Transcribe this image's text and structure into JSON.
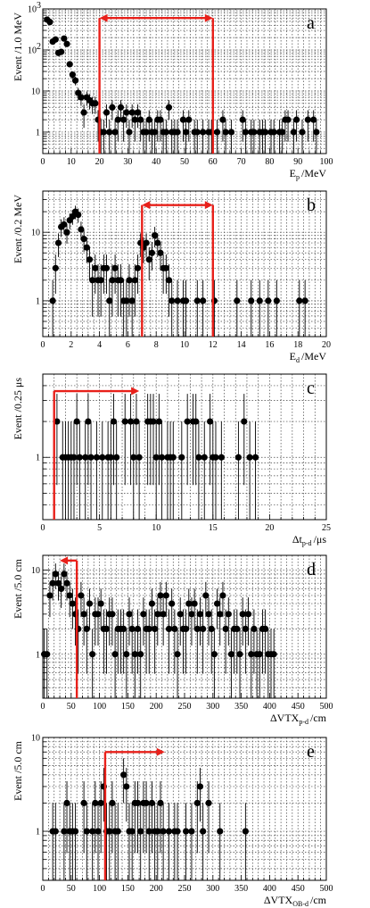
{
  "chart_data": [
    {
      "type": "scatter",
      "id": "a",
      "panel_label": "a",
      "xlabel_main": "E",
      "xlabel_sub": "p",
      "xlabel_unit": "/MeV",
      "ylabel": "Event /1.0 MeV",
      "xlim": [
        0,
        100
      ],
      "ylim": [
        0.3,
        1000
      ],
      "ylog": true,
      "grid": true,
      "x_ticks": [
        0,
        10,
        20,
        30,
        40,
        50,
        60,
        70,
        80,
        90,
        100
      ],
      "y_ticks": [
        {
          "v": 1,
          "label": "1"
        },
        {
          "v": 10,
          "label": "10"
        },
        {
          "v": 100,
          "label": "10",
          "exp": "2"
        },
        {
          "v": 1000,
          "label": "10",
          "exp": "3"
        }
      ],
      "cuts": [
        {
          "x1": 20,
          "x2": 60,
          "arrow_y": 600,
          "dir": "both"
        }
      ],
      "points": [
        [
          1.5,
          550
        ],
        [
          2.5,
          480
        ],
        [
          3.5,
          160
        ],
        [
          4.5,
          180
        ],
        [
          5.5,
          85
        ],
        [
          6.5,
          90
        ],
        [
          7.5,
          190
        ],
        [
          8.5,
          140
        ],
        [
          9.5,
          45
        ],
        [
          10.5,
          25
        ],
        [
          11.5,
          18
        ],
        [
          12.5,
          9
        ],
        [
          13.5,
          7
        ],
        [
          14.5,
          3
        ],
        [
          15.5,
          7
        ],
        [
          16.5,
          6
        ],
        [
          17.5,
          5
        ],
        [
          18.5,
          5
        ],
        [
          19.5,
          2
        ],
        [
          20.5,
          1
        ],
        [
          21.5,
          1
        ],
        [
          22.5,
          3
        ],
        [
          23.5,
          1
        ],
        [
          24.5,
          4
        ],
        [
          25.5,
          1
        ],
        [
          26.5,
          2
        ],
        [
          27.5,
          4
        ],
        [
          28.5,
          2
        ],
        [
          29.5,
          3
        ],
        [
          30.5,
          1
        ],
        [
          31.5,
          3
        ],
        [
          32.5,
          2
        ],
        [
          33.5,
          3
        ],
        [
          34.5,
          2
        ],
        [
          35.5,
          1
        ],
        [
          36.5,
          1
        ],
        [
          37.5,
          2
        ],
        [
          38.5,
          1
        ],
        [
          39.5,
          1
        ],
        [
          40.5,
          2
        ],
        [
          41.5,
          2
        ],
        [
          42.5,
          1
        ],
        [
          43.5,
          1
        ],
        [
          44.5,
          4
        ],
        [
          45.5,
          1
        ],
        [
          46.5,
          1
        ],
        [
          47.5,
          1
        ],
        [
          49.5,
          2
        ],
        [
          50.5,
          1
        ],
        [
          51.5,
          2
        ],
        [
          53.5,
          1
        ],
        [
          54.5,
          1
        ],
        [
          56.5,
          1
        ],
        [
          58.5,
          1
        ],
        [
          59.5,
          1
        ],
        [
          61.5,
          1
        ],
        [
          63.5,
          2
        ],
        [
          64.5,
          1
        ],
        [
          66.5,
          1
        ],
        [
          70.5,
          2
        ],
        [
          71.5,
          1
        ],
        [
          73.5,
          1
        ],
        [
          74.5,
          1
        ],
        [
          76.5,
          1
        ],
        [
          77.5,
          1
        ],
        [
          78.5,
          1
        ],
        [
          80.5,
          1
        ],
        [
          81.5,
          1
        ],
        [
          83.5,
          1
        ],
        [
          84.5,
          1
        ],
        [
          85.5,
          2
        ],
        [
          86.5,
          2
        ],
        [
          88.5,
          1
        ],
        [
          89.5,
          2
        ],
        [
          91.5,
          1
        ],
        [
          93.5,
          2
        ],
        [
          95.5,
          2
        ],
        [
          96.5,
          1
        ]
      ]
    },
    {
      "type": "scatter",
      "id": "b",
      "panel_label": "b",
      "xlabel_main": "E",
      "xlabel_sub": "d",
      "xlabel_unit": "/MeV",
      "ylabel": "Event /0.2 MeV",
      "xlim": [
        0,
        20
      ],
      "ylim": [
        0.3,
        40
      ],
      "ylog": true,
      "grid": true,
      "x_ticks": [
        0,
        2,
        4,
        6,
        8,
        10,
        12,
        14,
        16,
        18,
        20
      ],
      "y_ticks": [
        {
          "v": 1,
          "label": "1"
        },
        {
          "v": 10,
          "label": "10"
        }
      ],
      "cuts": [
        {
          "x1": 7,
          "x2": 12,
          "arrow_y": 25,
          "dir": "both"
        }
      ],
      "points": [
        [
          0.7,
          1
        ],
        [
          0.9,
          3
        ],
        [
          1.1,
          7
        ],
        [
          1.3,
          12
        ],
        [
          1.5,
          13
        ],
        [
          1.7,
          10
        ],
        [
          1.9,
          15
        ],
        [
          2.1,
          17
        ],
        [
          2.3,
          20
        ],
        [
          2.5,
          18
        ],
        [
          2.7,
          11
        ],
        [
          2.9,
          8
        ],
        [
          3.1,
          6
        ],
        [
          3.3,
          4
        ],
        [
          3.5,
          2
        ],
        [
          3.7,
          3
        ],
        [
          3.9,
          2
        ],
        [
          4.1,
          2
        ],
        [
          4.3,
          3
        ],
        [
          4.5,
          3
        ],
        [
          4.7,
          1
        ],
        [
          4.9,
          2
        ],
        [
          5.1,
          3
        ],
        [
          5.3,
          2
        ],
        [
          5.5,
          2
        ],
        [
          5.7,
          1
        ],
        [
          5.9,
          1
        ],
        [
          6.1,
          2
        ],
        [
          6.3,
          1
        ],
        [
          6.5,
          2
        ],
        [
          6.7,
          3
        ],
        [
          6.9,
          7
        ],
        [
          7.1,
          6
        ],
        [
          7.3,
          7
        ],
        [
          7.5,
          4
        ],
        [
          7.7,
          5
        ],
        [
          7.9,
          9
        ],
        [
          8.1,
          7
        ],
        [
          8.3,
          5
        ],
        [
          8.5,
          3
        ],
        [
          8.7,
          3
        ],
        [
          8.9,
          2
        ],
        [
          9.1,
          1
        ],
        [
          9.5,
          1
        ],
        [
          9.9,
          1
        ],
        [
          10.1,
          1
        ],
        [
          10.9,
          1
        ],
        [
          11.3,
          1
        ],
        [
          12.1,
          1
        ],
        [
          13.7,
          1
        ],
        [
          14.7,
          1
        ],
        [
          15.3,
          1
        ],
        [
          15.9,
          1
        ],
        [
          16.5,
          1
        ],
        [
          18.1,
          1
        ],
        [
          18.5,
          1
        ]
      ]
    },
    {
      "type": "scatter",
      "id": "c",
      "panel_label": "c",
      "xlabel_main": "Δt",
      "xlabel_sub": "p-d",
      "xlabel_unit": "/μs",
      "ylabel": "Event /0.25 μs",
      "xlim": [
        0,
        25
      ],
      "ylim": [
        0.3,
        5
      ],
      "ylog": true,
      "grid": true,
      "x_ticks": [
        0,
        5,
        10,
        15,
        20,
        25
      ],
      "y_ticks": [
        {
          "v": 1,
          "label": "1"
        }
      ],
      "cuts": [
        {
          "x1": 1,
          "arrow_y": 3.6,
          "arrow_to": 8.5,
          "dir": "right"
        }
      ],
      "points": [
        [
          1.25,
          2
        ],
        [
          1.75,
          1
        ],
        [
          2.0,
          1
        ],
        [
          2.25,
          1
        ],
        [
          2.5,
          1
        ],
        [
          2.75,
          1
        ],
        [
          3.0,
          2
        ],
        [
          3.25,
          1
        ],
        [
          3.75,
          1
        ],
        [
          4.0,
          2
        ],
        [
          4.25,
          1
        ],
        [
          4.75,
          1
        ],
        [
          5.25,
          1
        ],
        [
          5.75,
          1
        ],
        [
          6.0,
          1
        ],
        [
          6.25,
          2
        ],
        [
          6.5,
          1
        ],
        [
          7.25,
          2
        ],
        [
          7.75,
          2
        ],
        [
          8.0,
          1
        ],
        [
          8.25,
          2
        ],
        [
          8.5,
          1
        ],
        [
          9.25,
          2
        ],
        [
          9.5,
          2
        ],
        [
          9.75,
          2
        ],
        [
          10.0,
          1
        ],
        [
          10.25,
          2
        ],
        [
          10.5,
          1
        ],
        [
          11.0,
          1
        ],
        [
          11.25,
          1
        ],
        [
          11.5,
          1
        ],
        [
          12.25,
          1
        ],
        [
          12.75,
          2
        ],
        [
          13.25,
          2
        ],
        [
          13.5,
          2
        ],
        [
          13.75,
          1
        ],
        [
          14.25,
          1
        ],
        [
          14.75,
          2
        ],
        [
          15.0,
          1
        ],
        [
          15.25,
          1
        ],
        [
          15.75,
          1
        ],
        [
          17.25,
          1
        ],
        [
          17.75,
          2
        ],
        [
          18.25,
          1
        ],
        [
          18.75,
          1
        ]
      ]
    },
    {
      "type": "scatter",
      "id": "d",
      "panel_label": "d",
      "xlabel_main": "ΔVTX",
      "xlabel_sub": "p-d",
      "xlabel_unit": "/cm",
      "ylabel": "Event /5.0 cm",
      "xlim": [
        0,
        500
      ],
      "ylim": [
        0.3,
        15
      ],
      "ylog": true,
      "grid": true,
      "x_ticks": [
        0,
        50,
        100,
        150,
        200,
        250,
        300,
        350,
        400,
        450,
        500
      ],
      "y_ticks": [
        {
          "v": 1,
          "label": "1"
        },
        {
          "v": 10,
          "label": "10"
        }
      ],
      "cuts": [
        {
          "x1": 60,
          "arrow_y": 13,
          "arrow_to": 30,
          "dir": "left"
        }
      ],
      "points": [
        [
          2.5,
          1
        ],
        [
          7.5,
          1
        ],
        [
          12.5,
          5
        ],
        [
          17.5,
          7
        ],
        [
          22.5,
          9
        ],
        [
          27.5,
          7
        ],
        [
          32.5,
          6
        ],
        [
          37.5,
          9
        ],
        [
          42.5,
          7
        ],
        [
          47.5,
          5
        ],
        [
          52.5,
          4
        ],
        [
          57.5,
          3
        ],
        [
          62.5,
          2
        ],
        [
          67.5,
          5
        ],
        [
          72.5,
          3
        ],
        [
          77.5,
          2
        ],
        [
          82.5,
          4
        ],
        [
          87.5,
          1
        ],
        [
          92.5,
          3
        ],
        [
          97.5,
          3
        ],
        [
          102.5,
          4
        ],
        [
          107.5,
          2
        ],
        [
          112.5,
          2
        ],
        [
          117.5,
          3
        ],
        [
          122.5,
          3
        ],
        [
          127.5,
          1
        ],
        [
          132.5,
          2
        ],
        [
          137.5,
          2
        ],
        [
          142.5,
          2
        ],
        [
          147.5,
          1
        ],
        [
          152.5,
          3
        ],
        [
          157.5,
          2
        ],
        [
          162.5,
          1
        ],
        [
          167.5,
          2
        ],
        [
          172.5,
          1
        ],
        [
          177.5,
          3
        ],
        [
          182.5,
          2
        ],
        [
          187.5,
          2
        ],
        [
          192.5,
          4
        ],
        [
          197.5,
          2
        ],
        [
          202.5,
          3
        ],
        [
          207.5,
          5
        ],
        [
          212.5,
          3
        ],
        [
          217.5,
          5
        ],
        [
          222.5,
          2
        ],
        [
          227.5,
          4
        ],
        [
          232.5,
          2
        ],
        [
          237.5,
          1
        ],
        [
          242.5,
          3
        ],
        [
          247.5,
          2
        ],
        [
          252.5,
          2
        ],
        [
          257.5,
          4
        ],
        [
          262.5,
          3
        ],
        [
          267.5,
          4
        ],
        [
          272.5,
          2
        ],
        [
          277.5,
          3
        ],
        [
          282.5,
          2
        ],
        [
          287.5,
          5
        ],
        [
          292.5,
          3
        ],
        [
          297.5,
          2
        ],
        [
          302.5,
          1
        ],
        [
          307.5,
          4
        ],
        [
          312.5,
          3
        ],
        [
          317.5,
          5
        ],
        [
          322.5,
          2
        ],
        [
          327.5,
          3
        ],
        [
          332.5,
          1
        ],
        [
          337.5,
          2
        ],
        [
          342.5,
          2
        ],
        [
          347.5,
          1
        ],
        [
          352.5,
          3
        ],
        [
          357.5,
          2
        ],
        [
          362.5,
          3
        ],
        [
          367.5,
          1
        ],
        [
          372.5,
          2
        ],
        [
          377.5,
          1
        ],
        [
          382.5,
          1
        ],
        [
          387.5,
          2
        ],
        [
          392.5,
          2
        ],
        [
          397.5,
          1
        ],
        [
          402.5,
          1
        ],
        [
          407.5,
          1
        ]
      ]
    },
    {
      "type": "scatter",
      "id": "e",
      "panel_label": "e",
      "xlabel_main": "ΔVTX",
      "xlabel_sub": "OB-d",
      "xlabel_unit": "/cm",
      "ylabel": "Event /5.0 cm",
      "xlim": [
        0,
        500
      ],
      "ylim": [
        0.3,
        10
      ],
      "ylog": true,
      "grid": true,
      "x_ticks": [
        0,
        50,
        100,
        150,
        200,
        250,
        300,
        350,
        400,
        450,
        500
      ],
      "y_ticks": [
        {
          "v": 1,
          "label": "1"
        },
        {
          "v": 10,
          "label": "10"
        }
      ],
      "cuts": [
        {
          "x1": 110,
          "arrow_y": 7,
          "arrow_to": 215,
          "dir": "right"
        }
      ],
      "points": [
        [
          17.5,
          1
        ],
        [
          22.5,
          1
        ],
        [
          37.5,
          1
        ],
        [
          42.5,
          2
        ],
        [
          47.5,
          1
        ],
        [
          52.5,
          1
        ],
        [
          57.5,
          1
        ],
        [
          72.5,
          2
        ],
        [
          77.5,
          1
        ],
        [
          87.5,
          1
        ],
        [
          92.5,
          2
        ],
        [
          97.5,
          1
        ],
        [
          102.5,
          2
        ],
        [
          107.5,
          3
        ],
        [
          112.5,
          1
        ],
        [
          117.5,
          1
        ],
        [
          122.5,
          2
        ],
        [
          127.5,
          1
        ],
        [
          132.5,
          1
        ],
        [
          142.5,
          4
        ],
        [
          147.5,
          3
        ],
        [
          152.5,
          1
        ],
        [
          157.5,
          1
        ],
        [
          162.5,
          2
        ],
        [
          167.5,
          2
        ],
        [
          172.5,
          1
        ],
        [
          177.5,
          2
        ],
        [
          182.5,
          2
        ],
        [
          187.5,
          1
        ],
        [
          192.5,
          2
        ],
        [
          197.5,
          1
        ],
        [
          202.5,
          1
        ],
        [
          207.5,
          2
        ],
        [
          212.5,
          1
        ],
        [
          222.5,
          1
        ],
        [
          232.5,
          1
        ],
        [
          237.5,
          1
        ],
        [
          252.5,
          1
        ],
        [
          262.5,
          1
        ],
        [
          272.5,
          2
        ],
        [
          277.5,
          3
        ],
        [
          282.5,
          1
        ],
        [
          292.5,
          2
        ],
        [
          312.5,
          1
        ],
        [
          357.5,
          1
        ]
      ]
    }
  ]
}
